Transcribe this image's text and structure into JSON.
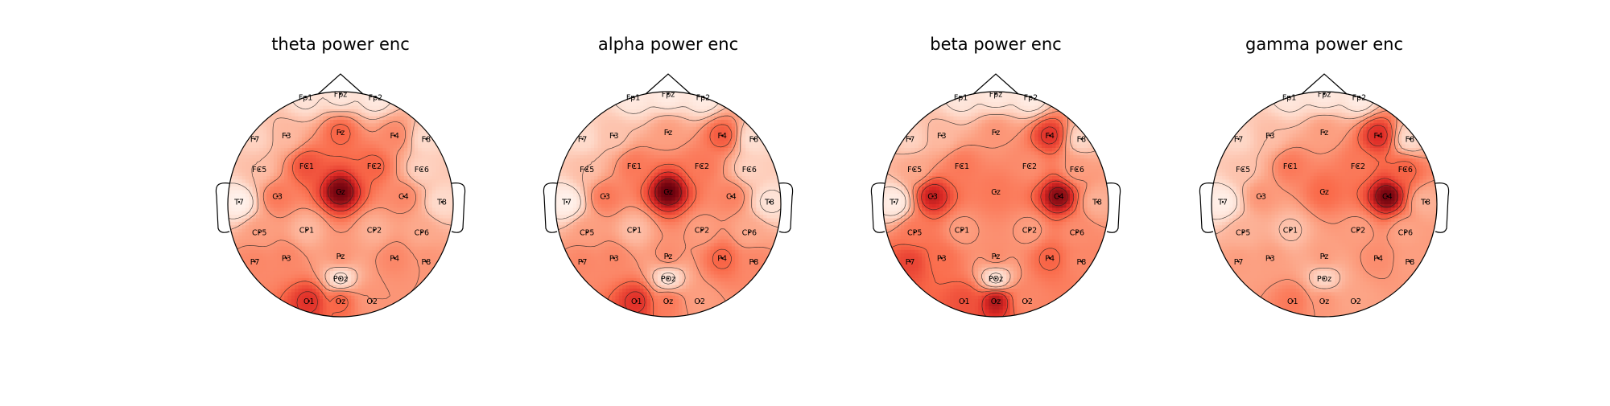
{
  "chart_data": [
    {
      "type": "heatmap",
      "subtype": "eeg-topomap",
      "title": "theta power enc",
      "colormap": "Reds",
      "contour_lines": true,
      "electrodes": [
        {
          "name": "Fp1",
          "x": -0.31,
          "y": 0.95,
          "value": 0.12
        },
        {
          "name": "Fpz",
          "x": 0.0,
          "y": 0.98,
          "value": 0.1
        },
        {
          "name": "Fp2",
          "x": 0.31,
          "y": 0.95,
          "value": 0.08
        },
        {
          "name": "F7",
          "x": -0.76,
          "y": 0.58,
          "value": 0.22
        },
        {
          "name": "F3",
          "x": -0.48,
          "y": 0.61,
          "value": 0.32
        },
        {
          "name": "Fz",
          "x": 0.0,
          "y": 0.64,
          "value": 0.62
        },
        {
          "name": "F4",
          "x": 0.48,
          "y": 0.61,
          "value": 0.5
        },
        {
          "name": "F8",
          "x": 0.76,
          "y": 0.58,
          "value": 0.18
        },
        {
          "name": "FC5",
          "x": -0.72,
          "y": 0.31,
          "value": 0.3
        },
        {
          "name": "FC1",
          "x": -0.3,
          "y": 0.34,
          "value": 0.68
        },
        {
          "name": "FC2",
          "x": 0.3,
          "y": 0.34,
          "value": 0.62
        },
        {
          "name": "FC6",
          "x": 0.72,
          "y": 0.31,
          "value": 0.22
        },
        {
          "name": "T7",
          "x": -0.9,
          "y": 0.02,
          "value": 0.02
        },
        {
          "name": "C3",
          "x": -0.56,
          "y": 0.07,
          "value": 0.55
        },
        {
          "name": "Cz",
          "x": 0.0,
          "y": 0.11,
          "value": 0.98
        },
        {
          "name": "C4",
          "x": 0.56,
          "y": 0.07,
          "value": 0.5
        },
        {
          "name": "T8",
          "x": 0.9,
          "y": 0.02,
          "value": 0.18
        },
        {
          "name": "CP5",
          "x": -0.72,
          "y": -0.25,
          "value": 0.42
        },
        {
          "name": "CP1",
          "x": -0.3,
          "y": -0.23,
          "value": 0.32
        },
        {
          "name": "CP2",
          "x": 0.3,
          "y": -0.23,
          "value": 0.35
        },
        {
          "name": "CP6",
          "x": 0.72,
          "y": -0.25,
          "value": 0.38
        },
        {
          "name": "P7",
          "x": -0.76,
          "y": -0.51,
          "value": 0.5
        },
        {
          "name": "P3",
          "x": -0.48,
          "y": -0.48,
          "value": 0.5
        },
        {
          "name": "Pz",
          "x": 0.0,
          "y": -0.46,
          "value": 0.45
        },
        {
          "name": "P4",
          "x": 0.48,
          "y": -0.48,
          "value": 0.5
        },
        {
          "name": "P8",
          "x": 0.76,
          "y": -0.51,
          "value": 0.45
        },
        {
          "name": "POz",
          "x": 0.0,
          "y": -0.66,
          "value": 0.12
        },
        {
          "name": "O1",
          "x": -0.28,
          "y": -0.86,
          "value": 0.78
        },
        {
          "name": "Oz",
          "x": 0.0,
          "y": -0.86,
          "value": 0.62
        },
        {
          "name": "O2",
          "x": 0.28,
          "y": -0.86,
          "value": 0.45
        }
      ]
    },
    {
      "type": "heatmap",
      "subtype": "eeg-topomap",
      "title": "alpha power enc",
      "colormap": "Reds",
      "contour_lines": true,
      "electrodes": [
        {
          "name": "Fp1",
          "x": -0.31,
          "y": 0.95,
          "value": 0.08
        },
        {
          "name": "Fpz",
          "x": 0.0,
          "y": 0.98,
          "value": 0.06
        },
        {
          "name": "Fp2",
          "x": 0.31,
          "y": 0.95,
          "value": 0.06
        },
        {
          "name": "F7",
          "x": -0.76,
          "y": 0.58,
          "value": 0.18
        },
        {
          "name": "F3",
          "x": -0.48,
          "y": 0.61,
          "value": 0.28
        },
        {
          "name": "Fz",
          "x": 0.0,
          "y": 0.64,
          "value": 0.42
        },
        {
          "name": "F4",
          "x": 0.48,
          "y": 0.61,
          "value": 0.65
        },
        {
          "name": "F8",
          "x": 0.76,
          "y": 0.58,
          "value": 0.15
        },
        {
          "name": "FC5",
          "x": -0.72,
          "y": 0.31,
          "value": 0.3
        },
        {
          "name": "FC1",
          "x": -0.3,
          "y": 0.34,
          "value": 0.55
        },
        {
          "name": "FC2",
          "x": 0.3,
          "y": 0.34,
          "value": 0.55
        },
        {
          "name": "FC6",
          "x": 0.72,
          "y": 0.31,
          "value": 0.22
        },
        {
          "name": "T7",
          "x": -0.9,
          "y": 0.02,
          "value": 0.02
        },
        {
          "name": "C3",
          "x": -0.56,
          "y": 0.07,
          "value": 0.55
        },
        {
          "name": "Cz",
          "x": 0.0,
          "y": 0.11,
          "value": 1.0
        },
        {
          "name": "C4",
          "x": 0.56,
          "y": 0.07,
          "value": 0.52
        },
        {
          "name": "T8",
          "x": 0.9,
          "y": 0.02,
          "value": 0.12
        },
        {
          "name": "CP5",
          "x": -0.72,
          "y": -0.25,
          "value": 0.42
        },
        {
          "name": "CP1",
          "x": -0.3,
          "y": -0.23,
          "value": 0.3
        },
        {
          "name": "CP2",
          "x": 0.3,
          "y": -0.23,
          "value": 0.42
        },
        {
          "name": "CP6",
          "x": 0.72,
          "y": -0.25,
          "value": 0.38
        },
        {
          "name": "P7",
          "x": -0.76,
          "y": -0.51,
          "value": 0.5
        },
        {
          "name": "P3",
          "x": -0.48,
          "y": -0.48,
          "value": 0.5
        },
        {
          "name": "Pz",
          "x": 0.0,
          "y": -0.46,
          "value": 0.48
        },
        {
          "name": "P4",
          "x": 0.48,
          "y": -0.48,
          "value": 0.62
        },
        {
          "name": "P8",
          "x": 0.76,
          "y": -0.51,
          "value": 0.5
        },
        {
          "name": "POz",
          "x": 0.0,
          "y": -0.66,
          "value": 0.12
        },
        {
          "name": "O1",
          "x": -0.28,
          "y": -0.86,
          "value": 0.78
        },
        {
          "name": "Oz",
          "x": 0.0,
          "y": -0.86,
          "value": 0.55
        },
        {
          "name": "O2",
          "x": 0.28,
          "y": -0.86,
          "value": 0.42
        }
      ]
    },
    {
      "type": "heatmap",
      "subtype": "eeg-topomap",
      "title": "beta power enc",
      "colormap": "Reds",
      "contour_lines": true,
      "electrodes": [
        {
          "name": "Fp1",
          "x": -0.31,
          "y": 0.95,
          "value": 0.1
        },
        {
          "name": "Fpz",
          "x": 0.0,
          "y": 0.98,
          "value": 0.08
        },
        {
          "name": "Fp2",
          "x": 0.31,
          "y": 0.95,
          "value": 0.06
        },
        {
          "name": "F7",
          "x": -0.76,
          "y": 0.58,
          "value": 0.22
        },
        {
          "name": "F3",
          "x": -0.48,
          "y": 0.61,
          "value": 0.32
        },
        {
          "name": "Fz",
          "x": 0.0,
          "y": 0.64,
          "value": 0.45
        },
        {
          "name": "F4",
          "x": 0.48,
          "y": 0.61,
          "value": 0.78
        },
        {
          "name": "F8",
          "x": 0.76,
          "y": 0.58,
          "value": 0.2
        },
        {
          "name": "FC5",
          "x": -0.72,
          "y": 0.31,
          "value": 0.38
        },
        {
          "name": "FC1",
          "x": -0.3,
          "y": 0.34,
          "value": 0.55
        },
        {
          "name": "FC2",
          "x": 0.3,
          "y": 0.34,
          "value": 0.48
        },
        {
          "name": "FC6",
          "x": 0.72,
          "y": 0.31,
          "value": 0.42
        },
        {
          "name": "T7",
          "x": -0.9,
          "y": 0.02,
          "value": 0.05
        },
        {
          "name": "C3",
          "x": -0.56,
          "y": 0.07,
          "value": 0.85
        },
        {
          "name": "Cz",
          "x": 0.0,
          "y": 0.11,
          "value": 0.55
        },
        {
          "name": "C4",
          "x": 0.56,
          "y": 0.07,
          "value": 0.95
        },
        {
          "name": "T8",
          "x": 0.9,
          "y": 0.02,
          "value": 0.35
        },
        {
          "name": "CP5",
          "x": -0.72,
          "y": -0.25,
          "value": 0.55
        },
        {
          "name": "CP1",
          "x": -0.3,
          "y": -0.23,
          "value": 0.42
        },
        {
          "name": "CP2",
          "x": 0.3,
          "y": -0.23,
          "value": 0.42
        },
        {
          "name": "CP6",
          "x": 0.72,
          "y": -0.25,
          "value": 0.48
        },
        {
          "name": "P7",
          "x": -0.76,
          "y": -0.51,
          "value": 0.72
        },
        {
          "name": "P3",
          "x": -0.48,
          "y": -0.48,
          "value": 0.58
        },
        {
          "name": "Pz",
          "x": 0.0,
          "y": -0.46,
          "value": 0.48
        },
        {
          "name": "P4",
          "x": 0.48,
          "y": -0.48,
          "value": 0.62
        },
        {
          "name": "P8",
          "x": 0.76,
          "y": -0.51,
          "value": 0.5
        },
        {
          "name": "POz",
          "x": 0.0,
          "y": -0.66,
          "value": 0.12
        },
        {
          "name": "O1",
          "x": -0.28,
          "y": -0.86,
          "value": 0.68
        },
        {
          "name": "Oz",
          "x": 0.0,
          "y": -0.86,
          "value": 0.88
        },
        {
          "name": "O2",
          "x": 0.28,
          "y": -0.86,
          "value": 0.5
        }
      ]
    },
    {
      "type": "heatmap",
      "subtype": "eeg-topomap",
      "title": "gamma power enc",
      "colormap": "Reds",
      "contour_lines": true,
      "electrodes": [
        {
          "name": "Fp1",
          "x": -0.31,
          "y": 0.95,
          "value": 0.1
        },
        {
          "name": "Fpz",
          "x": 0.0,
          "y": 0.98,
          "value": 0.08
        },
        {
          "name": "Fp2",
          "x": 0.31,
          "y": 0.95,
          "value": 0.06
        },
        {
          "name": "F7",
          "x": -0.76,
          "y": 0.58,
          "value": 0.2
        },
        {
          "name": "F3",
          "x": -0.48,
          "y": 0.61,
          "value": 0.3
        },
        {
          "name": "Fz",
          "x": 0.0,
          "y": 0.64,
          "value": 0.42
        },
        {
          "name": "F4",
          "x": 0.48,
          "y": 0.61,
          "value": 0.8
        },
        {
          "name": "F8",
          "x": 0.76,
          "y": 0.58,
          "value": 0.18
        },
        {
          "name": "FC5",
          "x": -0.72,
          "y": 0.31,
          "value": 0.28
        },
        {
          "name": "FC1",
          "x": -0.3,
          "y": 0.34,
          "value": 0.55
        },
        {
          "name": "FC2",
          "x": 0.3,
          "y": 0.34,
          "value": 0.55
        },
        {
          "name": "FC6",
          "x": 0.72,
          "y": 0.31,
          "value": 0.62
        },
        {
          "name": "T7",
          "x": -0.9,
          "y": 0.02,
          "value": 0.04
        },
        {
          "name": "C3",
          "x": -0.56,
          "y": 0.07,
          "value": 0.45
        },
        {
          "name": "Cz",
          "x": 0.0,
          "y": 0.11,
          "value": 0.6
        },
        {
          "name": "C4",
          "x": 0.56,
          "y": 0.07,
          "value": 0.98
        },
        {
          "name": "T8",
          "x": 0.9,
          "y": 0.02,
          "value": 0.35
        },
        {
          "name": "CP5",
          "x": -0.72,
          "y": -0.25,
          "value": 0.35
        },
        {
          "name": "CP1",
          "x": -0.3,
          "y": -0.23,
          "value": 0.28
        },
        {
          "name": "CP2",
          "x": 0.3,
          "y": -0.23,
          "value": 0.42
        },
        {
          "name": "CP6",
          "x": 0.72,
          "y": -0.25,
          "value": 0.4
        },
        {
          "name": "P7",
          "x": -0.76,
          "y": -0.51,
          "value": 0.42
        },
        {
          "name": "P3",
          "x": -0.48,
          "y": -0.48,
          "value": 0.42
        },
        {
          "name": "Pz",
          "x": 0.0,
          "y": -0.46,
          "value": 0.42
        },
        {
          "name": "P4",
          "x": 0.48,
          "y": -0.48,
          "value": 0.48
        },
        {
          "name": "P8",
          "x": 0.76,
          "y": -0.51,
          "value": 0.42
        },
        {
          "name": "POz",
          "x": 0.0,
          "y": -0.66,
          "value": 0.2
        },
        {
          "name": "O1",
          "x": -0.28,
          "y": -0.86,
          "value": 0.55
        },
        {
          "name": "Oz",
          "x": 0.0,
          "y": -0.86,
          "value": 0.45
        },
        {
          "name": "O2",
          "x": 0.28,
          "y": -0.86,
          "value": 0.4
        }
      ]
    }
  ]
}
